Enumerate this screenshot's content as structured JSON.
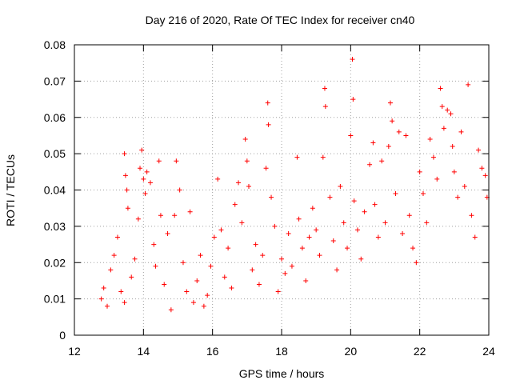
{
  "chart_data": {
    "type": "scatter",
    "title": "Day 216 of 2020, Rate Of TEC Index for receiver cn40",
    "xlabel": "GPS time / hours",
    "ylabel": "ROTI / TECUs",
    "xlim": [
      12,
      24
    ],
    "ylim": [
      0,
      0.08
    ],
    "x_ticks": [
      12,
      14,
      16,
      18,
      20,
      22,
      24
    ],
    "y_ticks": [
      0,
      0.01,
      0.02,
      0.03,
      0.04,
      0.05,
      0.06,
      0.07,
      0.08
    ],
    "x_tick_labels": [
      "12",
      "14",
      "16",
      "18",
      "20",
      "22",
      "24"
    ],
    "y_tick_labels": [
      "0",
      "0.01",
      "0.02",
      "0.03",
      "0.04",
      "0.05",
      "0.06",
      "0.07",
      "0.08"
    ],
    "grid": true,
    "marker": "+",
    "marker_color": "#ff0000",
    "series": [
      {
        "name": "cn40",
        "points": [
          [
            12.78,
            0.01
          ],
          [
            12.85,
            0.013
          ],
          [
            12.95,
            0.008
          ],
          [
            13.05,
            0.018
          ],
          [
            13.15,
            0.022
          ],
          [
            13.25,
            0.027
          ],
          [
            13.35,
            0.012
          ],
          [
            13.45,
            0.009
          ],
          [
            13.45,
            0.05
          ],
          [
            13.48,
            0.044
          ],
          [
            13.52,
            0.04
          ],
          [
            13.55,
            0.035
          ],
          [
            13.65,
            0.016
          ],
          [
            13.75,
            0.021
          ],
          [
            13.85,
            0.032
          ],
          [
            13.9,
            0.046
          ],
          [
            13.95,
            0.051
          ],
          [
            14.0,
            0.043
          ],
          [
            14.05,
            0.039
          ],
          [
            14.1,
            0.045
          ],
          [
            14.2,
            0.042
          ],
          [
            14.3,
            0.025
          ],
          [
            14.35,
            0.019
          ],
          [
            14.45,
            0.048
          ],
          [
            14.5,
            0.033
          ],
          [
            14.6,
            0.014
          ],
          [
            14.7,
            0.028
          ],
          [
            14.8,
            0.007
          ],
          [
            14.9,
            0.033
          ],
          [
            14.95,
            0.048
          ],
          [
            15.05,
            0.04
          ],
          [
            15.15,
            0.02
          ],
          [
            15.25,
            0.012
          ],
          [
            15.35,
            0.034
          ],
          [
            15.45,
            0.009
          ],
          [
            15.55,
            0.015
          ],
          [
            15.65,
            0.022
          ],
          [
            15.75,
            0.008
          ],
          [
            15.85,
            0.011
          ],
          [
            15.95,
            0.019
          ],
          [
            16.05,
            0.027
          ],
          [
            16.15,
            0.043
          ],
          [
            16.25,
            0.029
          ],
          [
            16.35,
            0.016
          ],
          [
            16.45,
            0.024
          ],
          [
            16.55,
            0.013
          ],
          [
            16.65,
            0.036
          ],
          [
            16.75,
            0.042
          ],
          [
            16.85,
            0.031
          ],
          [
            16.95,
            0.054
          ],
          [
            17.0,
            0.048
          ],
          [
            17.05,
            0.041
          ],
          [
            17.15,
            0.018
          ],
          [
            17.25,
            0.025
          ],
          [
            17.35,
            0.014
          ],
          [
            17.45,
            0.022
          ],
          [
            17.55,
            0.046
          ],
          [
            17.6,
            0.064
          ],
          [
            17.62,
            0.058
          ],
          [
            17.7,
            0.038
          ],
          [
            17.8,
            0.03
          ],
          [
            17.9,
            0.012
          ],
          [
            18.0,
            0.021
          ],
          [
            18.1,
            0.017
          ],
          [
            18.2,
            0.028
          ],
          [
            18.3,
            0.019
          ],
          [
            18.45,
            0.049
          ],
          [
            18.5,
            0.032
          ],
          [
            18.6,
            0.024
          ],
          [
            18.7,
            0.015
          ],
          [
            18.8,
            0.027
          ],
          [
            18.9,
            0.035
          ],
          [
            19.0,
            0.029
          ],
          [
            19.1,
            0.022
          ],
          [
            19.2,
            0.049
          ],
          [
            19.25,
            0.068
          ],
          [
            19.27,
            0.063
          ],
          [
            19.4,
            0.038
          ],
          [
            19.5,
            0.026
          ],
          [
            19.6,
            0.018
          ],
          [
            19.7,
            0.041
          ],
          [
            19.8,
            0.031
          ],
          [
            19.9,
            0.024
          ],
          [
            20.0,
            0.055
          ],
          [
            20.05,
            0.076
          ],
          [
            20.07,
            0.065
          ],
          [
            20.1,
            0.037
          ],
          [
            20.2,
            0.029
          ],
          [
            20.3,
            0.021
          ],
          [
            20.4,
            0.034
          ],
          [
            20.55,
            0.047
          ],
          [
            20.65,
            0.053
          ],
          [
            20.7,
            0.036
          ],
          [
            20.8,
            0.027
          ],
          [
            20.9,
            0.048
          ],
          [
            21.0,
            0.031
          ],
          [
            21.1,
            0.052
          ],
          [
            21.15,
            0.064
          ],
          [
            21.2,
            0.059
          ],
          [
            21.3,
            0.039
          ],
          [
            21.4,
            0.056
          ],
          [
            21.5,
            0.028
          ],
          [
            21.6,
            0.055
          ],
          [
            21.7,
            0.033
          ],
          [
            21.8,
            0.024
          ],
          [
            21.9,
            0.02
          ],
          [
            22.0,
            0.045
          ],
          [
            22.1,
            0.039
          ],
          [
            22.2,
            0.031
          ],
          [
            22.3,
            0.054
          ],
          [
            22.4,
            0.049
          ],
          [
            22.5,
            0.043
          ],
          [
            22.6,
            0.068
          ],
          [
            22.65,
            0.063
          ],
          [
            22.7,
            0.057
          ],
          [
            22.8,
            0.062
          ],
          [
            22.9,
            0.061
          ],
          [
            22.95,
            0.052
          ],
          [
            23.0,
            0.045
          ],
          [
            23.1,
            0.038
          ],
          [
            23.2,
            0.056
          ],
          [
            23.3,
            0.041
          ],
          [
            23.4,
            0.069
          ],
          [
            23.5,
            0.033
          ],
          [
            23.6,
            0.027
          ],
          [
            23.7,
            0.051
          ],
          [
            23.8,
            0.046
          ],
          [
            23.9,
            0.044
          ],
          [
            23.95,
            0.038
          ]
        ]
      }
    ]
  }
}
